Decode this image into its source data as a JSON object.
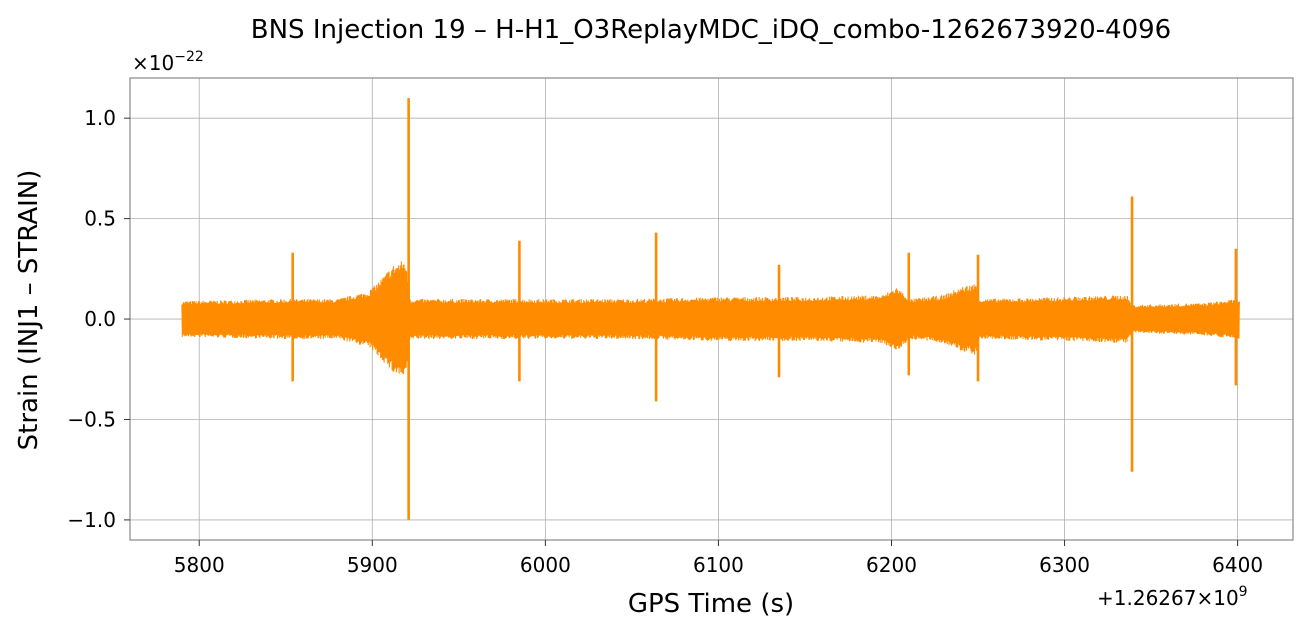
{
  "chart_data": {
    "type": "line",
    "title": "BNS Injection 19 – H-H1_O3ReplayMDC_iDQ_combo-1262673920-4096",
    "xlabel": "GPS Time (s)",
    "ylabel": "Strain (INJ1 – STRAIN)",
    "x_offset_label": "+1.26267×10",
    "x_offset_exp": "9",
    "y_multiplier_label": "×10",
    "y_multiplier_exp": "−22",
    "xlim": [
      5760,
      6432
    ],
    "ylim": [
      -1.1,
      1.2
    ],
    "x_ticks": [
      5800,
      5900,
      6000,
      6100,
      6200,
      6300,
      6400
    ],
    "x_tick_labels": [
      "5800",
      "5900",
      "6000",
      "6100",
      "6200",
      "6300",
      "6400"
    ],
    "y_ticks": [
      -1.0,
      -0.5,
      0.0,
      0.5,
      1.0
    ],
    "y_tick_labels": [
      "−1.0",
      "−0.5",
      "0.0",
      "0.5",
      "1.0"
    ],
    "grid": true,
    "series": [
      {
        "color": "#ff8c00",
        "x_start": 5790,
        "x_end": 6401,
        "base_amplitude": [
          [
            5790,
            0.09
          ],
          [
            5850,
            0.1
          ],
          [
            5880,
            0.1
          ],
          [
            5898,
            0.14
          ],
          [
            5905,
            0.2
          ],
          [
            5912,
            0.27
          ],
          [
            5919,
            0.3
          ],
          [
            5922,
            0.1
          ],
          [
            5960,
            0.1
          ],
          [
            6000,
            0.1
          ],
          [
            6050,
            0.1
          ],
          [
            6100,
            0.11
          ],
          [
            6150,
            0.11
          ],
          [
            6195,
            0.12
          ],
          [
            6203,
            0.16
          ],
          [
            6211,
            0.1
          ],
          [
            6230,
            0.12
          ],
          [
            6240,
            0.16
          ],
          [
            6249,
            0.18
          ],
          [
            6251,
            0.1
          ],
          [
            6300,
            0.11
          ],
          [
            6336,
            0.12
          ],
          [
            6339,
            0.07
          ],
          [
            6380,
            0.08
          ],
          [
            6400,
            0.1
          ]
        ],
        "spikes": [
          {
            "x": 5854,
            "ymax": 0.33,
            "ymin": -0.31
          },
          {
            "x": 5921,
            "ymax": 1.1,
            "ymin": -1.0
          },
          {
            "x": 5985,
            "ymax": 0.39,
            "ymin": -0.31
          },
          {
            "x": 6064,
            "ymax": 0.43,
            "ymin": -0.41
          },
          {
            "x": 6135,
            "ymax": 0.27,
            "ymin": -0.29
          },
          {
            "x": 6210,
            "ymax": 0.33,
            "ymin": -0.28
          },
          {
            "x": 6250,
            "ymax": 0.32,
            "ymin": -0.31
          },
          {
            "x": 6339,
            "ymax": 0.61,
            "ymin": -0.76
          },
          {
            "x": 6399,
            "ymax": 0.35,
            "ymin": -0.33
          }
        ]
      }
    ]
  }
}
